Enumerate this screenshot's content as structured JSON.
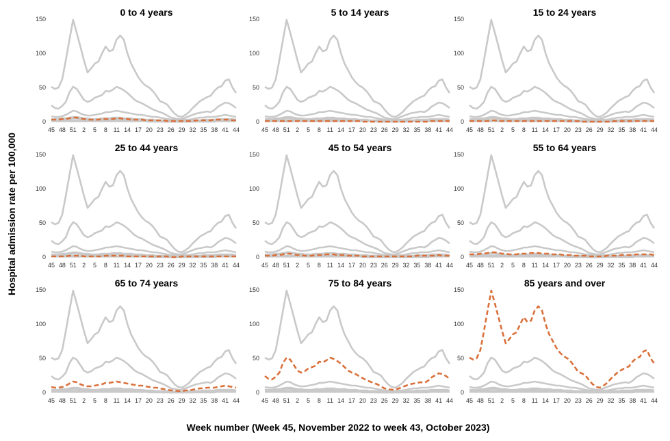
{
  "chart_data": {
    "type": "line",
    "layout": "small-multiples-3x3",
    "ylabel": "Hospital admission rate per 100,000",
    "xlabel": "Week number (Week 45, November 2022 to week 43, October 2023)",
    "ylim": [
      0,
      150
    ],
    "yticks": [
      0,
      50,
      100,
      150
    ],
    "x_tick_labels": [
      "45",
      "48",
      "51",
      "2",
      "5",
      "8",
      "11",
      "14",
      "17",
      "20",
      "23",
      "26",
      "29",
      "32",
      "35",
      "38",
      "41",
      "44"
    ],
    "grid": false,
    "legend": "none",
    "colors": {
      "background_series": "#c9c9c9",
      "highlight_series": "#d9703a"
    },
    "weeks": [
      45,
      46,
      47,
      48,
      49,
      50,
      51,
      52,
      1,
      2,
      3,
      4,
      5,
      6,
      7,
      8,
      9,
      10,
      11,
      12,
      13,
      14,
      15,
      16,
      17,
      18,
      19,
      20,
      21,
      22,
      23,
      24,
      25,
      26,
      27,
      28,
      29,
      30,
      31,
      32,
      33,
      34,
      35,
      36,
      37,
      38,
      39,
      40,
      41,
      42,
      43,
      44
    ],
    "series": [
      {
        "name": "0 to 4 years",
        "values": [
          3,
          3,
          3,
          4,
          4,
          5,
          6,
          6,
          5,
          4,
          3,
          3,
          3,
          3,
          4,
          4,
          4,
          4,
          5,
          5,
          4,
          4,
          3,
          3,
          3,
          3,
          2,
          2,
          2,
          2,
          2,
          2,
          1,
          1,
          1,
          1,
          1,
          1,
          1,
          1,
          2,
          2,
          2,
          2,
          2,
          3,
          3,
          3,
          3,
          3,
          2,
          2
        ]
      },
      {
        "name": "5 to 14 years",
        "values": [
          1,
          1,
          1,
          1,
          1,
          1,
          1,
          1,
          1,
          1,
          1,
          1,
          1,
          1,
          1,
          1,
          1,
          1,
          1,
          1,
          1,
          1,
          1,
          1,
          1,
          1,
          1,
          0,
          0,
          0,
          0,
          0,
          0,
          0,
          0,
          0,
          0,
          0,
          0,
          0,
          0,
          0,
          0,
          0,
          0,
          0,
          1,
          1,
          1,
          1,
          1,
          1
        ]
      },
      {
        "name": "15 to 24 years",
        "values": [
          1,
          1,
          1,
          1,
          1,
          1,
          2,
          2,
          1,
          1,
          1,
          1,
          1,
          1,
          1,
          1,
          1,
          1,
          1,
          1,
          1,
          1,
          1,
          1,
          1,
          1,
          1,
          1,
          1,
          1,
          1,
          0,
          0,
          0,
          0,
          0,
          0,
          0,
          0,
          0,
          1,
          1,
          1,
          1,
          1,
          1,
          1,
          1,
          1,
          1,
          1,
          1
        ]
      },
      {
        "name": "25 to 44 years",
        "values": [
          1,
          1,
          1,
          1,
          1,
          2,
          2,
          2,
          2,
          1,
          1,
          1,
          1,
          1,
          1,
          2,
          2,
          2,
          2,
          2,
          2,
          1,
          1,
          1,
          1,
          1,
          1,
          1,
          1,
          1,
          1,
          1,
          1,
          0,
          0,
          0,
          1,
          1,
          1,
          1,
          1,
          1,
          1,
          1,
          1,
          1,
          1,
          1,
          1,
          1,
          1,
          1
        ]
      },
      {
        "name": "45 to 54 years",
        "values": [
          2,
          2,
          2,
          3,
          3,
          4,
          5,
          5,
          4,
          3,
          3,
          2,
          2,
          2,
          3,
          3,
          3,
          4,
          4,
          4,
          3,
          3,
          3,
          2,
          2,
          2,
          2,
          1,
          1,
          1,
          1,
          1,
          1,
          1,
          1,
          1,
          1,
          1,
          1,
          1,
          1,
          1,
          2,
          2,
          2,
          2,
          2,
          2,
          3,
          2,
          2,
          2
        ]
      },
      {
        "name": "55 to 64 years",
        "values": [
          4,
          4,
          4,
          5,
          5,
          6,
          7,
          7,
          6,
          5,
          5,
          4,
          4,
          4,
          5,
          5,
          5,
          6,
          6,
          6,
          5,
          5,
          5,
          4,
          4,
          4,
          3,
          3,
          3,
          2,
          2,
          2,
          2,
          1,
          1,
          1,
          1,
          1,
          2,
          2,
          2,
          2,
          3,
          3,
          3,
          3,
          4,
          4,
          4,
          4,
          4,
          3
        ]
      },
      {
        "name": "65 to 74 years",
        "values": [
          8,
          7,
          7,
          8,
          10,
          13,
          16,
          15,
          12,
          10,
          9,
          9,
          10,
          11,
          12,
          14,
          14,
          15,
          16,
          15,
          14,
          13,
          12,
          11,
          10,
          10,
          9,
          8,
          7,
          7,
          6,
          5,
          4,
          3,
          3,
          2,
          2,
          3,
          3,
          4,
          5,
          6,
          6,
          7,
          7,
          7,
          8,
          9,
          10,
          9,
          8,
          7
        ]
      },
      {
        "name": "75 to 84 years",
        "values": [
          24,
          20,
          19,
          23,
          29,
          43,
          51,
          48,
          40,
          32,
          29,
          31,
          35,
          37,
          39,
          45,
          44,
          47,
          51,
          49,
          46,
          42,
          37,
          32,
          29,
          27,
          24,
          21,
          18,
          16,
          14,
          12,
          9,
          6,
          5,
          4,
          4,
          6,
          8,
          10,
          12,
          13,
          14,
          15,
          14,
          17,
          22,
          25,
          28,
          27,
          24,
          20
        ]
      },
      {
        "name": "85 years and over",
        "values": [
          51,
          48,
          50,
          62,
          90,
          120,
          149,
          130,
          110,
          90,
          72,
          78,
          85,
          88,
          100,
          110,
          103,
          105,
          120,
          126,
          120,
          100,
          85,
          75,
          65,
          58,
          53,
          50,
          45,
          38,
          30,
          28,
          25,
          18,
          12,
          8,
          7,
          10,
          14,
          20,
          25,
          30,
          33,
          36,
          38,
          45,
          50,
          52,
          60,
          62,
          50,
          42
        ]
      }
    ]
  },
  "axis_titles": {
    "y": "Hospital admission rate per 100,000",
    "x": "Week number (Week 45, November 2022 to week 43, October 2023)"
  }
}
